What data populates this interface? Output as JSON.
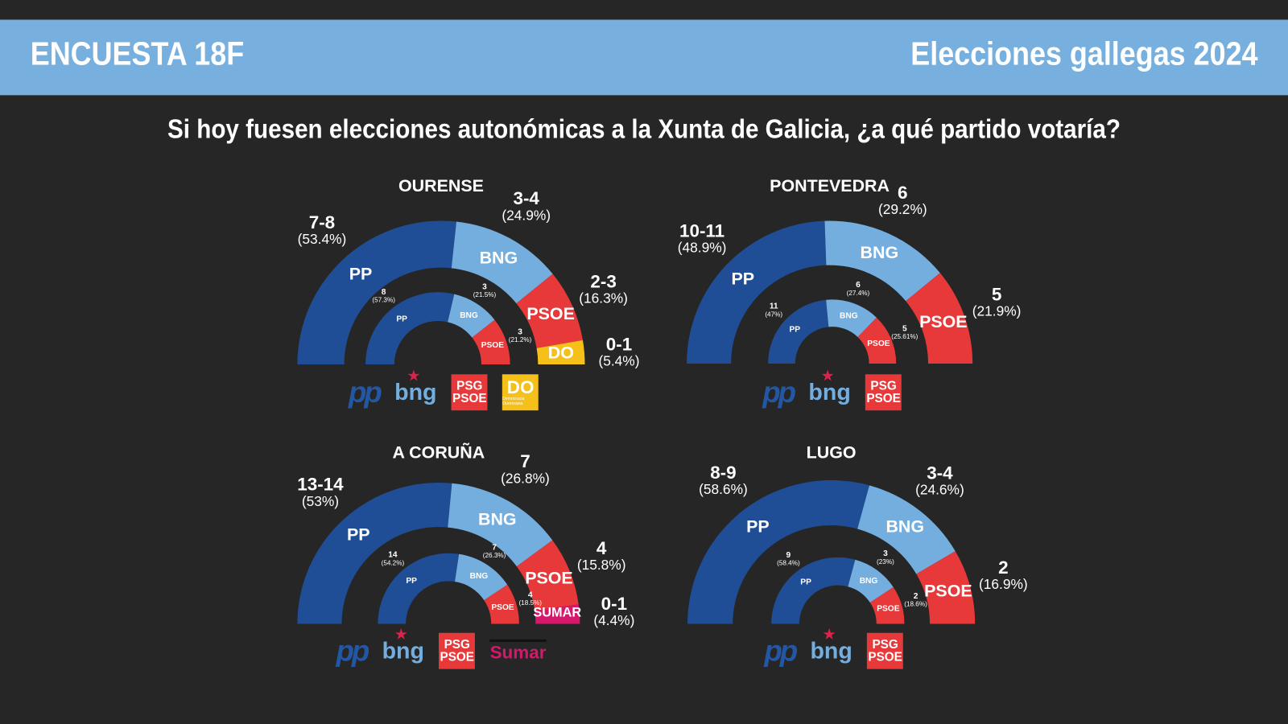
{
  "header": {
    "left": "ENCUESTA 18F",
    "right": "Elecciones gallegas 2024"
  },
  "question": "Si hoy fuesen elecciones autonómicas a la Xunta de Galicia, ¿a qué partido votaría?",
  "colors": {
    "PP": "#1f4e96",
    "BNG": "#74aedf",
    "PSOE": "#e8393a",
    "DO": "#f5c01a",
    "SUMAR": "#d6186b",
    "background": "#262626",
    "header": "#77b0de"
  },
  "logos": {
    "PP": {
      "text": "pp"
    },
    "BNG": {
      "text": "bng"
    },
    "PSOE": {
      "line1": "PSG",
      "line2": "PSOE"
    },
    "DO": {
      "line1": "DO",
      "line2": "Democracia Ourensana"
    },
    "SUMAR": {
      "text": "Sumar"
    }
  },
  "chart_data": [
    {
      "type": "pie",
      "style": "semicircle-rings",
      "title": "OURENSE",
      "outer": [
        {
          "party": "PP",
          "seats": "7-8",
          "pct": 53.4
        },
        {
          "party": "BNG",
          "seats": "3-4",
          "pct": 24.9
        },
        {
          "party": "PSOE",
          "seats": "2-3",
          "pct": 16.3
        },
        {
          "party": "DO",
          "seats": "0-1",
          "pct": 5.4
        }
      ],
      "inner": [
        {
          "party": "PP",
          "seats": "8",
          "pct": 57.3
        },
        {
          "party": "BNG",
          "seats": "3",
          "pct": 21.5
        },
        {
          "party": "PSOE",
          "seats": "3",
          "pct": 21.2
        }
      ],
      "logos": [
        "PP",
        "BNG",
        "PSOE",
        "DO"
      ]
    },
    {
      "type": "pie",
      "style": "semicircle-rings",
      "title": "PONTEVEDRA",
      "outer": [
        {
          "party": "PP",
          "seats": "10-11",
          "pct": 48.9
        },
        {
          "party": "BNG",
          "seats": "6",
          "pct": 29.2
        },
        {
          "party": "PSOE",
          "seats": "5",
          "pct": 21.9
        }
      ],
      "inner": [
        {
          "party": "PP",
          "seats": "11",
          "pct": 47
        },
        {
          "party": "BNG",
          "seats": "6",
          "pct": 27.4
        },
        {
          "party": "PSOE",
          "seats": "5",
          "pct": 25.61
        }
      ],
      "logos": [
        "PP",
        "BNG",
        "PSOE"
      ]
    },
    {
      "type": "pie",
      "style": "semicircle-rings",
      "title": "A CORUÑA",
      "outer": [
        {
          "party": "PP",
          "seats": "13-14",
          "pct": 53
        },
        {
          "party": "BNG",
          "seats": "7",
          "pct": 26.8
        },
        {
          "party": "PSOE",
          "seats": "4",
          "pct": 15.8
        },
        {
          "party": "SUMAR",
          "seats": "0-1",
          "pct": 4.4
        }
      ],
      "inner": [
        {
          "party": "PP",
          "seats": "14",
          "pct": 54.2
        },
        {
          "party": "BNG",
          "seats": "7",
          "pct": 26.3
        },
        {
          "party": "PSOE",
          "seats": "4",
          "pct": 18.5
        }
      ],
      "logos": [
        "PP",
        "BNG",
        "PSOE",
        "SUMAR"
      ]
    },
    {
      "type": "pie",
      "style": "semicircle-rings",
      "title": "LUGO",
      "outer": [
        {
          "party": "PP",
          "seats": "8-9",
          "pct": 58.6
        },
        {
          "party": "BNG",
          "seats": "3-4",
          "pct": 24.6
        },
        {
          "party": "PSOE",
          "seats": "2",
          "pct": 16.9
        }
      ],
      "inner": [
        {
          "party": "PP",
          "seats": "9",
          "pct": 58.4
        },
        {
          "party": "BNG",
          "seats": "3",
          "pct": 23
        },
        {
          "party": "PSOE",
          "seats": "2",
          "pct": 18.6
        }
      ],
      "logos": [
        "PP",
        "BNG",
        "PSOE"
      ]
    }
  ]
}
